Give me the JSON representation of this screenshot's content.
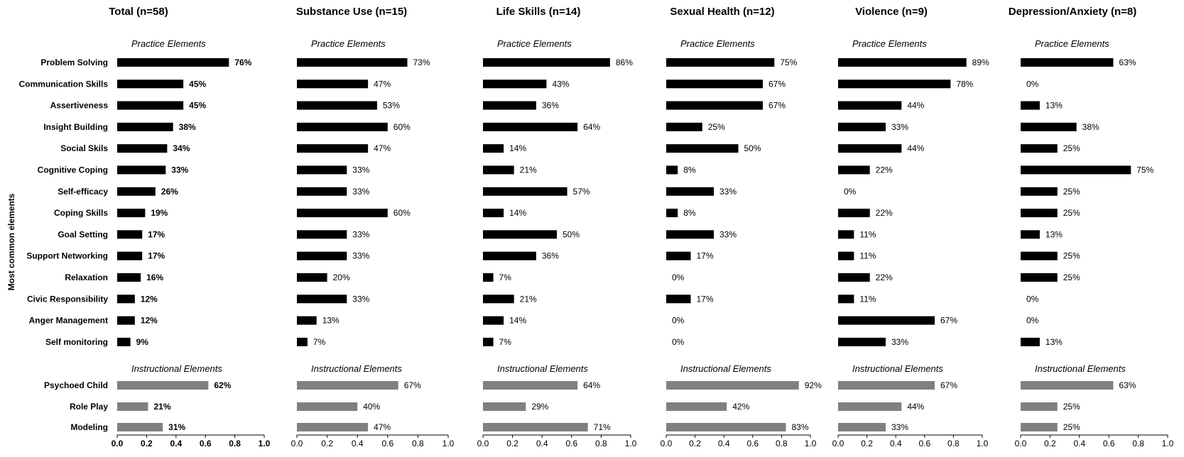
{
  "y_axis_label": "Most common elements",
  "section_labels": {
    "practice": "Practice Elements",
    "instructional": "Instructional Elements"
  },
  "practice_elements": [
    "Problem Solving",
    "Communication Skills",
    "Assertiveness",
    "Insight Building",
    "Social Skils",
    "Cognitive Coping",
    "Self-efficacy",
    "Coping Skills",
    "Goal Setting",
    "Support Networking",
    "Relaxation",
    "Civic Responsibility",
    "Anger Management",
    "Self monitoring"
  ],
  "instructional_elements": [
    "Psychoed Child",
    "Role Play",
    "Modeling"
  ],
  "colors": {
    "practice": "#000000",
    "instructional": "#808080",
    "text": "#000000",
    "axis": "#000000"
  },
  "chart_data": [
    {
      "type": "bar",
      "orientation": "horizontal",
      "title": "Total (n=58)",
      "series": [
        {
          "name": "Practice Elements",
          "values": [
            0.76,
            0.45,
            0.45,
            0.38,
            0.34,
            0.33,
            0.26,
            0.19,
            0.17,
            0.17,
            0.16,
            0.12,
            0.12,
            0.09
          ],
          "labels": [
            "76%",
            "45%",
            "45%",
            "38%",
            "34%",
            "33%",
            "26%",
            "19%",
            "17%",
            "17%",
            "16%",
            "12%",
            "12%",
            "9%"
          ]
        },
        {
          "name": "Instructional Elements",
          "values": [
            0.62,
            0.21,
            0.31
          ],
          "labels": [
            "62%",
            "21%",
            "31%"
          ]
        }
      ],
      "xlim": [
        0,
        1.0
      ],
      "xticks": [
        "0.0",
        "0.2",
        "0.4",
        "0.6",
        "0.8",
        "1.0"
      ],
      "bold_labels": true
    },
    {
      "type": "bar",
      "orientation": "horizontal",
      "title": "Substance Use (n=15)",
      "series": [
        {
          "name": "Practice Elements",
          "values": [
            0.73,
            0.47,
            0.53,
            0.6,
            0.47,
            0.33,
            0.33,
            0.6,
            0.33,
            0.33,
            0.2,
            0.33,
            0.13,
            0.07
          ],
          "labels": [
            "73%",
            "47%",
            "53%",
            "60%",
            "47%",
            "33%",
            "33%",
            "60%",
            "33%",
            "33%",
            "20%",
            "33%",
            "13%",
            "7%"
          ]
        },
        {
          "name": "Instructional Elements",
          "values": [
            0.67,
            0.4,
            0.47
          ],
          "labels": [
            "67%",
            "40%",
            "47%"
          ]
        }
      ],
      "xlim": [
        0,
        1.0
      ],
      "xticks": [
        "0.0",
        "0.2",
        "0.4",
        "0.6",
        "0.8",
        "1.0"
      ],
      "bold_labels": false
    },
    {
      "type": "bar",
      "orientation": "horizontal",
      "title": "Life Skills (n=14)",
      "series": [
        {
          "name": "Practice Elements",
          "values": [
            0.86,
            0.43,
            0.36,
            0.64,
            0.14,
            0.21,
            0.57,
            0.14,
            0.5,
            0.36,
            0.07,
            0.21,
            0.14,
            0.07
          ],
          "labels": [
            "86%",
            "43%",
            "36%",
            "64%",
            "14%",
            "21%",
            "57%",
            "14%",
            "50%",
            "36%",
            "7%",
            "21%",
            "14%",
            "7%"
          ]
        },
        {
          "name": "Instructional Elements",
          "values": [
            0.64,
            0.29,
            0.71
          ],
          "labels": [
            "64%",
            "29%",
            "71%"
          ]
        }
      ],
      "xlim": [
        0,
        1.0
      ],
      "xticks": [
        "0.0",
        "0.2",
        "0.4",
        "0.6",
        "0.8",
        "1.0"
      ],
      "bold_labels": false
    },
    {
      "type": "bar",
      "orientation": "horizontal",
      "title": "Sexual Health (n=12)",
      "series": [
        {
          "name": "Practice Elements",
          "values": [
            0.75,
            0.67,
            0.67,
            0.25,
            0.5,
            0.08,
            0.33,
            0.08,
            0.33,
            0.17,
            0.0,
            0.17,
            0.0,
            0.0
          ],
          "labels": [
            "75%",
            "67%",
            "67%",
            "25%",
            "50%",
            "8%",
            "33%",
            "8%",
            "33%",
            "17%",
            "0%",
            "17%",
            "0%",
            "0%"
          ]
        },
        {
          "name": "Instructional Elements",
          "values": [
            0.92,
            0.42,
            0.83
          ],
          "labels": [
            "92%",
            "42%",
            "83%"
          ]
        }
      ],
      "xlim": [
        0,
        1.0
      ],
      "xticks": [
        "0.0",
        "0.2",
        "0.4",
        "0.6",
        "0.8",
        "1.0"
      ],
      "bold_labels": false
    },
    {
      "type": "bar",
      "orientation": "horizontal",
      "title": "Violence (n=9)",
      "series": [
        {
          "name": "Practice Elements",
          "values": [
            0.89,
            0.78,
            0.44,
            0.33,
            0.44,
            0.22,
            0.0,
            0.22,
            0.11,
            0.11,
            0.22,
            0.11,
            0.67,
            0.33
          ],
          "labels": [
            "89%",
            "78%",
            "44%",
            "33%",
            "44%",
            "22%",
            "0%",
            "22%",
            "11%",
            "11%",
            "22%",
            "11%",
            "67%",
            "33%"
          ]
        },
        {
          "name": "Instructional Elements",
          "values": [
            0.67,
            0.44,
            0.33
          ],
          "labels": [
            "67%",
            "44%",
            "33%"
          ]
        }
      ],
      "xlim": [
        0,
        1.0
      ],
      "xticks": [
        "0.0",
        "0.2",
        "0.4",
        "0.6",
        "0.8",
        "1.0"
      ],
      "bold_labels": false
    },
    {
      "type": "bar",
      "orientation": "horizontal",
      "title": "Depression/Anxiety (n=8)",
      "series": [
        {
          "name": "Practice Elements",
          "values": [
            0.63,
            0.0,
            0.13,
            0.38,
            0.25,
            0.75,
            0.25,
            0.25,
            0.13,
            0.25,
            0.25,
            0.0,
            0.0,
            0.13
          ],
          "labels": [
            "63%",
            "0%",
            "13%",
            "38%",
            "25%",
            "75%",
            "25%",
            "25%",
            "13%",
            "25%",
            "25%",
            "0%",
            "0%",
            "13%"
          ]
        },
        {
          "name": "Instructional Elements",
          "values": [
            0.63,
            0.25,
            0.25
          ],
          "labels": [
            "63%",
            "25%",
            "25%"
          ]
        }
      ],
      "xlim": [
        0,
        1.0
      ],
      "xticks": [
        "0.0",
        "0.2",
        "0.4",
        "0.6",
        "0.8",
        "1.0"
      ],
      "bold_labels": false
    }
  ]
}
